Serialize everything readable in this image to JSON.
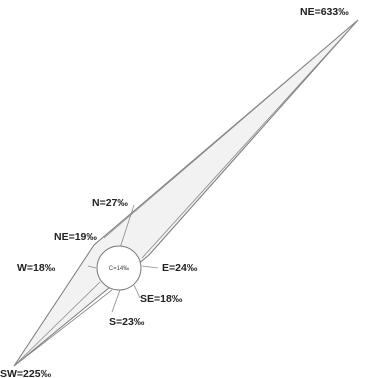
{
  "diagram": {
    "center_label": "C=14‰",
    "petals": [
      {
        "key": "NE_main",
        "label": "NE=633‰"
      },
      {
        "key": "SW",
        "label": "SW=225‰"
      },
      {
        "key": "N",
        "label": "N=27‰"
      },
      {
        "key": "NE_small",
        "label": "NE=19‰"
      },
      {
        "key": "W",
        "label": "W=18‰"
      },
      {
        "key": "E",
        "label": "E=24‰"
      },
      {
        "key": "SE",
        "label": "SE=18‰"
      },
      {
        "key": "S",
        "label": "S=23‰"
      }
    ],
    "colors": {
      "fill": "#f2f2f2",
      "stroke": "#7a7a7a",
      "text": "#222222"
    }
  }
}
